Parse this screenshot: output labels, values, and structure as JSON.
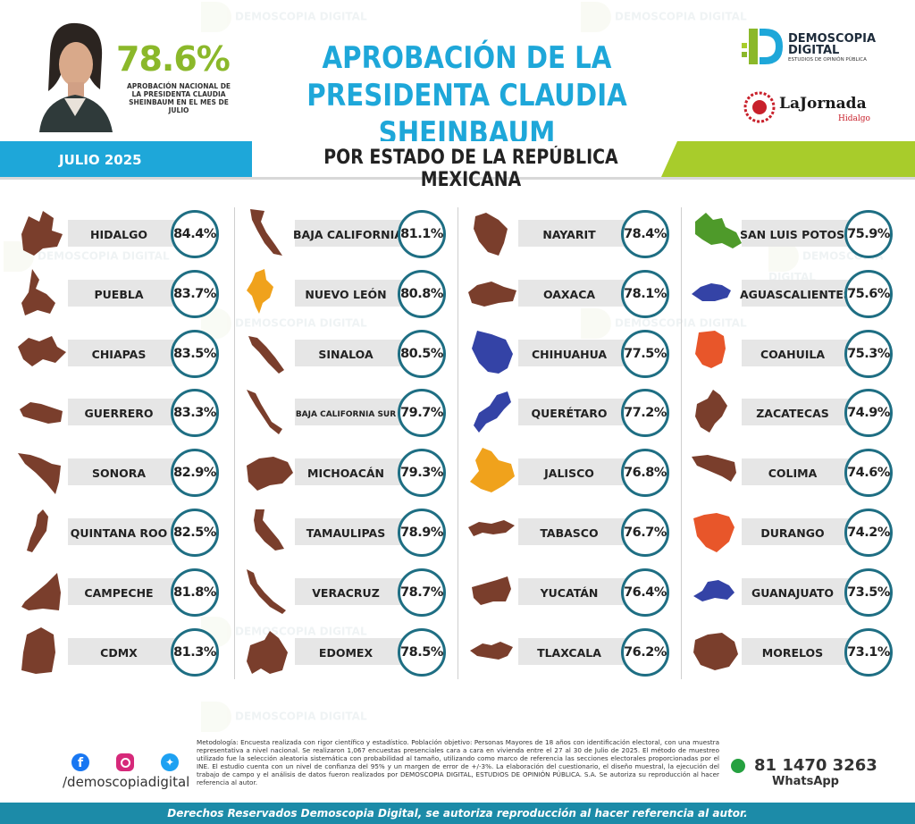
{
  "header": {
    "approval_value": "78.6%",
    "approval_caption": "APROBACIÓN NACIONAL DE LA PRESIDENTA CLAUDIA SHEINBAUM EN EL MES DE JULIO",
    "title_line1": "APROBACIÓN DE LA",
    "title_line2": "PRESIDENTA CLAUDIA SHEINBAUM",
    "logo_main": "DEMOSCOPIA",
    "logo_main2": "DIGITAL",
    "logo_sub": "ESTUDIOS DE OPINIÓN PÚBLICA",
    "partner_logo": "LaJornada",
    "partner_sub": "Hidalgo"
  },
  "band": {
    "month": "JULIO 2025",
    "title": "POR ESTADO DE LA REPÚBLICA MEXICANA"
  },
  "colors": {
    "accent_blue": "#1ea7d9",
    "accent_green": "#a8cc2b",
    "circle_border": "#1e6e83",
    "brown": "#7a3e2c",
    "orange": "#e8562a",
    "gold": "#f0a21c",
    "navy": "#3443a6",
    "green_state": "#4e9a2a"
  },
  "states": [
    [
      {
        "name": "HIDALGO",
        "value": "84.4%",
        "color": "brown"
      },
      {
        "name": "PUEBLA",
        "value": "83.7%",
        "color": "brown"
      },
      {
        "name": "CHIAPAS",
        "value": "83.5%",
        "color": "brown"
      },
      {
        "name": "GUERRERO",
        "value": "83.3%",
        "color": "brown"
      },
      {
        "name": "SONORA",
        "value": "82.9%",
        "color": "brown"
      },
      {
        "name": "QUINTANA ROO",
        "value": "82.5%",
        "color": "brown"
      },
      {
        "name": "CAMPECHE",
        "value": "81.8%",
        "color": "brown"
      },
      {
        "name": "CDMX",
        "value": "81.3%",
        "color": "brown"
      }
    ],
    [
      {
        "name": "BAJA CALIFORNIA",
        "value": "81.1%",
        "color": "brown"
      },
      {
        "name": "NUEVO LEÓN",
        "value": "80.8%",
        "color": "gold"
      },
      {
        "name": "SINALOA",
        "value": "80.5%",
        "color": "brown"
      },
      {
        "name": "BAJA CALIFORNIA SUR",
        "value": "79.7%",
        "color": "brown"
      },
      {
        "name": "MICHOACÁN",
        "value": "79.3%",
        "color": "brown"
      },
      {
        "name": "TAMAULIPAS",
        "value": "78.9%",
        "color": "brown"
      },
      {
        "name": "VERACRUZ",
        "value": "78.7%",
        "color": "brown"
      },
      {
        "name": "EDOMEX",
        "value": "78.5%",
        "color": "brown"
      }
    ],
    [
      {
        "name": "NAYARIT",
        "value": "78.4%",
        "color": "brown"
      },
      {
        "name": "OAXACA",
        "value": "78.1%",
        "color": "brown"
      },
      {
        "name": "CHIHUAHUA",
        "value": "77.5%",
        "color": "navy"
      },
      {
        "name": "QUERÉTARO",
        "value": "77.2%",
        "color": "navy"
      },
      {
        "name": "JALISCO",
        "value": "76.8%",
        "color": "gold"
      },
      {
        "name": "TABASCO",
        "value": "76.7%",
        "color": "brown"
      },
      {
        "name": "YUCATÁN",
        "value": "76.4%",
        "color": "brown"
      },
      {
        "name": "TLAXCALA",
        "value": "76.2%",
        "color": "brown"
      }
    ],
    [
      {
        "name": "SAN LUIS POTOSÍ",
        "value": "75.9%",
        "color": "green_state"
      },
      {
        "name": "AGUASCALIENTES",
        "value": "75.6%",
        "color": "navy"
      },
      {
        "name": "COAHUILA",
        "value": "75.3%",
        "color": "orange"
      },
      {
        "name": "ZACATECAS",
        "value": "74.9%",
        "color": "brown"
      },
      {
        "name": "COLIMA",
        "value": "74.6%",
        "color": "brown"
      },
      {
        "name": "DURANGO",
        "value": "74.2%",
        "color": "orange"
      },
      {
        "name": "GUANAJUATO",
        "value": "73.5%",
        "color": "navy"
      },
      {
        "name": "MORELOS",
        "value": "73.1%",
        "color": "brown"
      }
    ]
  ],
  "footer": {
    "social_handle": "/demoscopiadigital",
    "methodology": "Metodología: Encuesta realizada con rigor científico y estadístico. Población objetivo: Personas Mayores de 18 años con identificación electoral, con una muestra representativa a nivel nacional. Se realizaron 1,067 encuestas presenciales cara a cara en vivienda entre el 27 al 30 de Julio de 2025. El método de muestreo utilizado fue la selección aleatoria sistemática con probabilidad al tamaño, utilizando como marco de referencia las secciones electorales proporcionadas por el INE. El estudio cuenta con un nivel de confianza del 95% y un margen de error de +/-3%. La elaboración del cuestionario, el diseño muestral, la ejecución del trabajo de campo y el análisis de datos fueron realizados por DEMOSCOPIA DIGITAL, ESTUDIOS DE OPINIÓN PÚBLICA. S.A. Se autoriza su reproducción al hacer referencia al autor.",
    "phone": "81 1470 3263",
    "whatsapp_label": "WhatsApp",
    "rights": "Derechos Reservados Demoscopia Digital, se autoriza reproducción al hacer referencia al autor."
  }
}
